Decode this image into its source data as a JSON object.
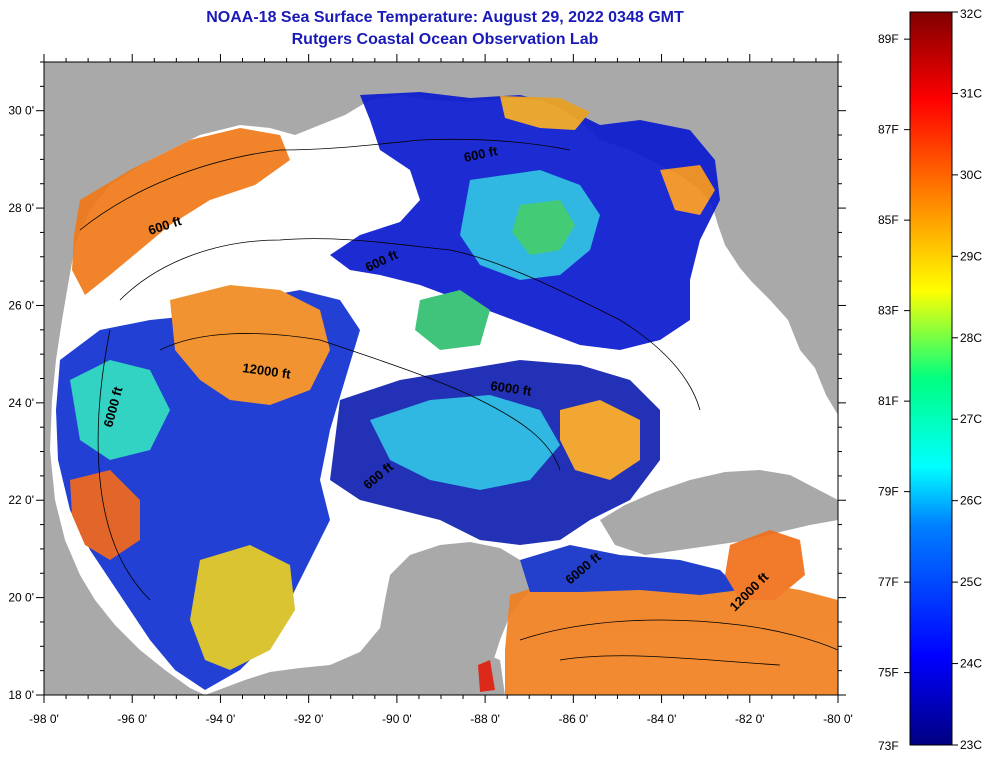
{
  "header": {
    "title": "NOAA-18 Sea Surface Temperature:  August 29, 2022 0348 GMT",
    "subtitle": "Rutgers Coastal Ocean Observation Lab"
  },
  "map": {
    "lon_range": [
      -98,
      -80
    ],
    "lat_range": [
      18,
      31
    ],
    "lon_ticks": [
      "-98 0'",
      "-96 0'",
      "-94 0'",
      "-92 0'",
      "-90 0'",
      "-88 0'",
      "-86 0'",
      "-84 0'",
      "-82 0'",
      "-80 0'"
    ],
    "lat_ticks": [
      "18 0'",
      "20 0'",
      "22 0'",
      "24 0'",
      "26 0'",
      "28 0'",
      "30 0'"
    ],
    "contour_labels": [
      "600 ft",
      "600 ft",
      "600 ft",
      "12000 ft",
      "6000 ft",
      "6000 ft",
      "600 ft",
      "6000 ft",
      "12000 ft"
    ],
    "colors": {
      "land": "#a9a9a9",
      "cloud": "#ffffff",
      "frame": "#000000"
    }
  },
  "colorbar": {
    "celsius_labels": [
      "32C",
      "31C",
      "30C",
      "29C",
      "28C",
      "27C",
      "26C",
      "25C",
      "24C",
      "23C"
    ],
    "fahrenheit_labels": [
      "89F",
      "87F",
      "85F",
      "83F",
      "81F",
      "79F",
      "77F",
      "75F",
      "73F"
    ],
    "range_c": [
      23,
      32
    ]
  }
}
